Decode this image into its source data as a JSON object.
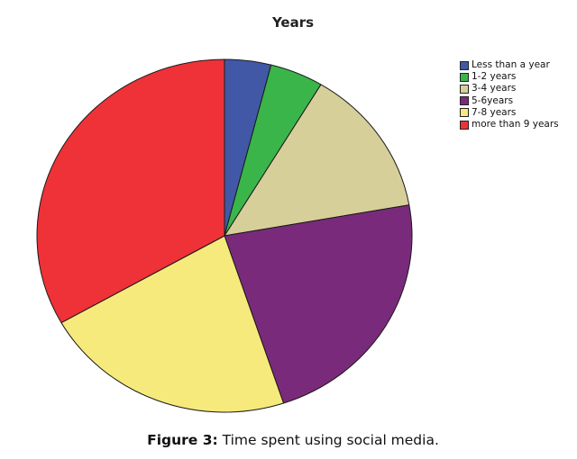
{
  "chart_data": {
    "type": "pie",
    "title": "Years",
    "legend_position": "top-right",
    "start_angle_deg": 0,
    "direction": "clockwise",
    "slices": [
      {
        "label": "Less than a year",
        "value": 4,
        "color": "#4158a6"
      },
      {
        "label": "1-2 years",
        "value": 4.6,
        "color": "#3ab54a"
      },
      {
        "label": "3-4 years",
        "value": 13.6,
        "color": "#d6cf9a"
      },
      {
        "label": "5-6years",
        "value": 22.7,
        "color": "#7a2a7b"
      },
      {
        "label": "7-8 years",
        "value": 21.9,
        "color": "#f7ea7c"
      },
      {
        "label": "more than 9 years",
        "value": 33.2,
        "color": "#ee3237"
      }
    ]
  },
  "caption": {
    "label": "Figure 3:",
    "text": "Time spent using social media."
  }
}
